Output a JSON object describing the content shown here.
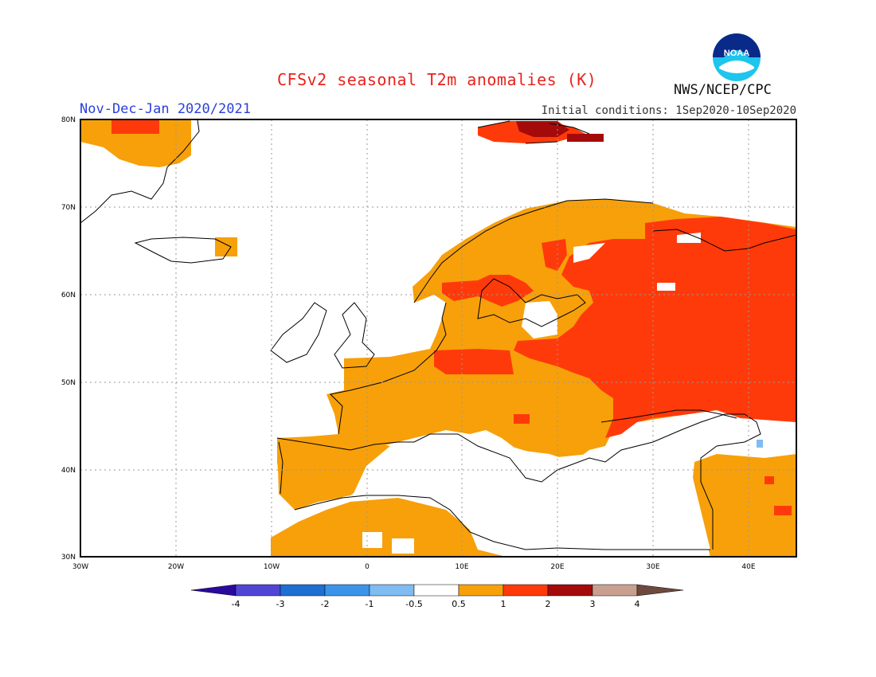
{
  "header": {
    "title": "CFSv2 seasonal T2m anomalies (K)",
    "period": "Nov-Dec-Jan 2020/2021",
    "initial_conditions": "Initial conditions: 1Sep2020-10Sep2020",
    "organization": "NWS/NCEP/CPC",
    "logo_text": "NOAA"
  },
  "map": {
    "lat_labels": [
      "80N",
      "70N",
      "60N",
      "50N",
      "40N",
      "30N"
    ],
    "lon_labels": [
      "30W",
      "20W",
      "10W",
      "0",
      "10E",
      "20E",
      "30E",
      "40E"
    ],
    "grid": true
  },
  "legend": {
    "labels": [
      "-4",
      "-3",
      "-2",
      "-1",
      "-0.5",
      "0.5",
      "1",
      "2",
      "3",
      "4"
    ],
    "colors": [
      "#2a0a9e",
      "#5046d6",
      "#1e6fd4",
      "#3c94ea",
      "#7ebcf2",
      "#ffffff",
      "#f7a00a",
      "#ff3a0a",
      "#a50a0a",
      "#c9a090",
      "#6e4a3e"
    ]
  },
  "colors": {
    "anom_0_5_1": "#f7a00a",
    "anom_1_2": "#ff3a0a",
    "anom_2_3": "#a50a0a",
    "anom_neg": "#7ebcf2",
    "coast": "#000000"
  }
}
